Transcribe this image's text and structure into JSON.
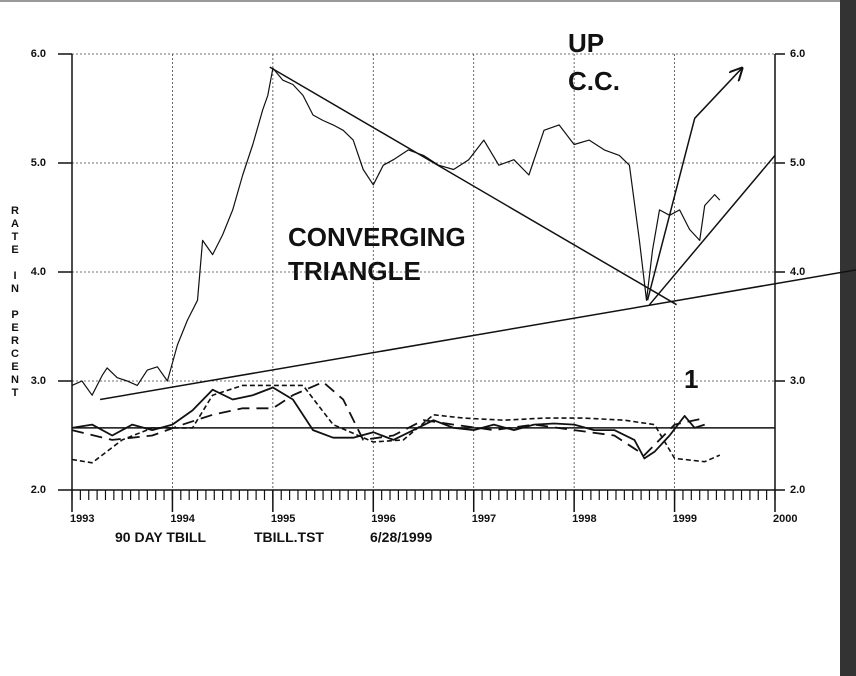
{
  "chart_data": {
    "type": "line",
    "ylabel": "RATE IN PERCENT",
    "annotations": [
      "UP",
      "C.C.",
      "CONVERGING",
      "TRIANGLE",
      "1"
    ],
    "footer": [
      "90 DAY TBILL",
      "TBILL.TST",
      "6/28/1999"
    ],
    "xlim": [
      1993,
      2000
    ],
    "xticks": [
      1993,
      1994,
      1995,
      1996,
      1997,
      1998,
      1999,
      2000
    ],
    "ylim": [
      2,
      6
    ],
    "yticks": [
      {
        "value": 2,
        "label": "2.0"
      },
      {
        "value": 3,
        "label": "3.0"
      },
      {
        "value": 4,
        "label": "4.0"
      },
      {
        "value": 5,
        "label": "5.0"
      },
      {
        "value": 6,
        "label": "6.0"
      }
    ],
    "grid": true,
    "series": [
      {
        "color": "#111",
        "width": 1.2,
        "dash": "none",
        "x": [
          1993.0,
          1993.1,
          1993.2,
          1993.3,
          1993.35,
          1993.45,
          1993.55,
          1993.65,
          1993.75,
          1993.85,
          1993.95,
          1994.05,
          1994.15,
          1994.25,
          1994.3,
          1994.4,
          1994.5,
          1994.6,
          1994.7,
          1994.8,
          1994.9,
          1994.95,
          1995.0,
          1995.1,
          1995.2,
          1995.3,
          1995.4,
          1995.5,
          1995.6,
          1995.7,
          1995.8,
          1995.9,
          1996.0,
          1996.1,
          1996.2,
          1996.35,
          1996.5,
          1996.65,
          1996.8,
          1996.95,
          1997.1,
          1997.25,
          1997.4,
          1997.55,
          1997.7,
          1997.85,
          1998.0,
          1998.15,
          1998.3,
          1998.45,
          1998.55,
          1998.65,
          1998.72,
          1998.78,
          1998.85,
          1998.95,
          1999.05,
          1999.15,
          1999.25,
          1999.3,
          1999.4,
          1999.45
        ],
        "values": [
          2.96,
          3.0,
          2.87,
          3.05,
          3.12,
          3.03,
          3.0,
          2.96,
          3.1,
          3.13,
          3.0,
          3.33,
          3.56,
          3.74,
          4.29,
          4.16,
          4.34,
          4.57,
          4.89,
          5.17,
          5.49,
          5.62,
          5.87,
          5.76,
          5.72,
          5.62,
          5.44,
          5.39,
          5.35,
          5.3,
          5.21,
          4.94,
          4.8,
          4.98,
          5.03,
          5.12,
          5.07,
          4.98,
          4.94,
          5.03,
          5.21,
          4.98,
          5.03,
          4.89,
          5.3,
          5.35,
          5.17,
          5.21,
          5.12,
          5.07,
          4.98,
          4.29,
          3.74,
          4.2,
          4.57,
          4.52,
          4.57,
          4.39,
          4.29,
          4.61,
          4.71,
          4.66
        ]
      },
      {
        "color": "#111",
        "width": 1.8,
        "dash": "none",
        "x": [
          1993.0,
          1993.2,
          1993.4,
          1993.6,
          1993.8,
          1994.0,
          1994.2,
          1994.4,
          1994.6,
          1994.8,
          1995.0,
          1995.2,
          1995.4,
          1995.6,
          1995.8,
          1996.0,
          1996.2,
          1996.4,
          1996.6,
          1996.8,
          1997.0,
          1997.2,
          1997.4,
          1997.6,
          1997.8,
          1998.0,
          1998.2,
          1998.4,
          1998.6,
          1998.7,
          1998.8,
          1998.95,
          1999.1,
          1999.2,
          1999.3
        ],
        "values": [
          2.57,
          2.6,
          2.5,
          2.6,
          2.55,
          2.6,
          2.73,
          2.92,
          2.83,
          2.87,
          2.94,
          2.83,
          2.55,
          2.48,
          2.48,
          2.53,
          2.46,
          2.55,
          2.64,
          2.57,
          2.55,
          2.6,
          2.55,
          2.6,
          2.61,
          2.6,
          2.55,
          2.55,
          2.46,
          2.29,
          2.35,
          2.5,
          2.68,
          2.57,
          2.6
        ]
      },
      {
        "color": "#111",
        "width": 1.8,
        "dash": "long",
        "x": [
          1993.0,
          1993.4,
          1993.8,
          1994.1,
          1994.4,
          1994.7,
          1995.0,
          1995.2,
          1995.5,
          1995.7,
          1995.9,
          1996.2,
          1996.5,
          1996.8,
          1997.2,
          1997.6,
          1998.0,
          1998.4,
          1998.7,
          1999.0,
          1999.3
        ],
        "values": [
          2.55,
          2.46,
          2.5,
          2.6,
          2.69,
          2.75,
          2.75,
          2.87,
          2.99,
          2.83,
          2.46,
          2.5,
          2.64,
          2.6,
          2.55,
          2.6,
          2.55,
          2.5,
          2.32,
          2.6,
          2.66
        ]
      },
      {
        "color": "#111",
        "width": 1.6,
        "dash": "short",
        "x": [
          1993.0,
          1993.2,
          1993.5,
          1993.8,
          1994.2,
          1994.4,
          1994.7,
          1995.0,
          1995.3,
          1995.6,
          1996.0,
          1996.3,
          1996.6,
          1996.9,
          1997.3,
          1997.7,
          1998.1,
          1998.5,
          1998.8,
          1999.0,
          1999.3,
          1999.45
        ],
        "values": [
          2.28,
          2.25,
          2.46,
          2.57,
          2.57,
          2.87,
          2.96,
          2.96,
          2.96,
          2.6,
          2.44,
          2.46,
          2.69,
          2.66,
          2.64,
          2.66,
          2.66,
          2.64,
          2.6,
          2.29,
          2.26,
          2.32
        ]
      },
      {
        "color": "#111",
        "width": 1.5,
        "dash": "none",
        "x": [
          1993.0,
          2000.0
        ],
        "values": [
          2.57,
          2.57
        ]
      },
      {
        "color": "#111",
        "width": 1.5,
        "dash": "none",
        "x": [
          1993.28,
          2000.81
        ],
        "values": [
          2.83,
          4.02
        ]
      },
      {
        "color": "#111",
        "width": 1.5,
        "dash": "none",
        "x": [
          1994.97,
          1999.02
        ],
        "values": [
          5.88,
          3.7
        ]
      },
      {
        "color": "#111",
        "width": 1.5,
        "dash": "none",
        "x": [
          1998.75,
          2000.0
        ],
        "values": [
          3.7,
          5.07
        ]
      },
      {
        "color": "#111",
        "width": 1.5,
        "dash": "none",
        "arrow": true,
        "x": [
          1998.73,
          1999.2,
          1999.67
        ],
        "values": [
          3.74,
          5.41,
          5.87
        ]
      }
    ]
  }
}
